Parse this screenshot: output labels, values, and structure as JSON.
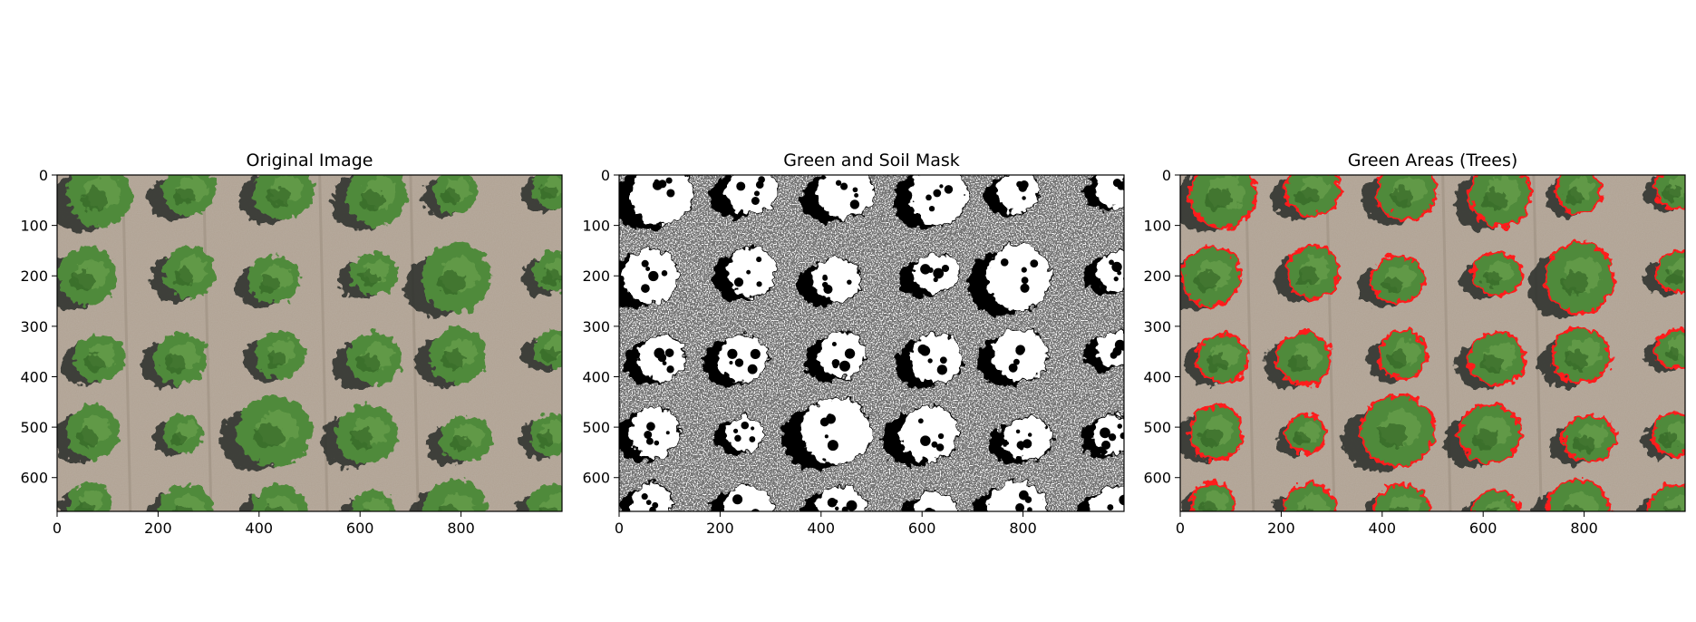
{
  "figure": {
    "panels": [
      {
        "id": "original",
        "title": "Original Image",
        "kind": "photo",
        "image_icon": "aerial-orchard-photo"
      },
      {
        "id": "mask",
        "title": "Green and Soil Mask",
        "kind": "binary-mask",
        "image_icon": "black-white-mask"
      },
      {
        "id": "overlay",
        "title": "Green Areas (Trees)",
        "kind": "photo-with-contours",
        "image_icon": "aerial-orchard-with-red-contours"
      }
    ],
    "x_ticks": [
      0,
      200,
      400,
      600,
      800
    ],
    "y_ticks": [
      0,
      100,
      200,
      300,
      400,
      500,
      600
    ],
    "x_range": [
      0,
      1000
    ],
    "y_range": [
      0,
      667
    ],
    "colors": {
      "soil": "#b0a293",
      "tree": "#4f8a3a",
      "tree_dark": "#2f5e22",
      "shadow": "#2a2e2a",
      "contour": "#ff1a1a",
      "mask_fg": "#ffffff",
      "mask_bg": "#000000"
    }
  }
}
